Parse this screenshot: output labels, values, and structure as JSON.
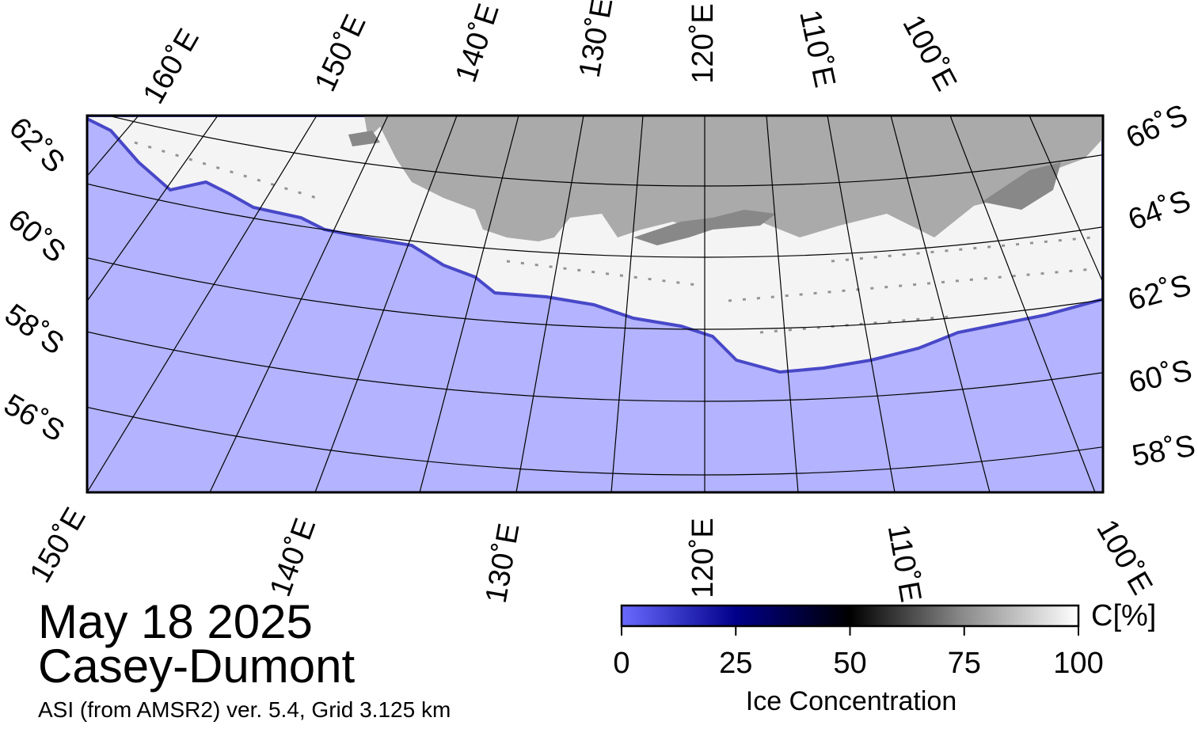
{
  "header": {
    "date": "May 18 2025",
    "region": "Casey-Dumont",
    "source": "ASI (from AMSR2) ver. 5.4,  Grid 3.125 km"
  },
  "map": {
    "top_longitude_labels": [
      "160˚E",
      "150˚E",
      "140˚E",
      "130˚E",
      "120˚E",
      "110˚E",
      "100˚E"
    ],
    "bottom_longitude_labels": [
      "150˚E",
      "140˚E",
      "130˚E",
      "120˚E",
      "110˚E",
      "100˚E"
    ],
    "left_latitude_labels": [
      "62˚S",
      "60˚S",
      "58˚S",
      "56˚S"
    ],
    "right_latitude_labels": [
      "66˚S",
      "64˚S",
      "62˚S",
      "60˚S",
      "58˚S"
    ]
  },
  "colorbar": {
    "lim": [
      0,
      100
    ],
    "ticks": [
      0,
      25,
      50,
      75,
      100
    ],
    "unit": "C[%]",
    "label": "Ice Concentration"
  }
}
